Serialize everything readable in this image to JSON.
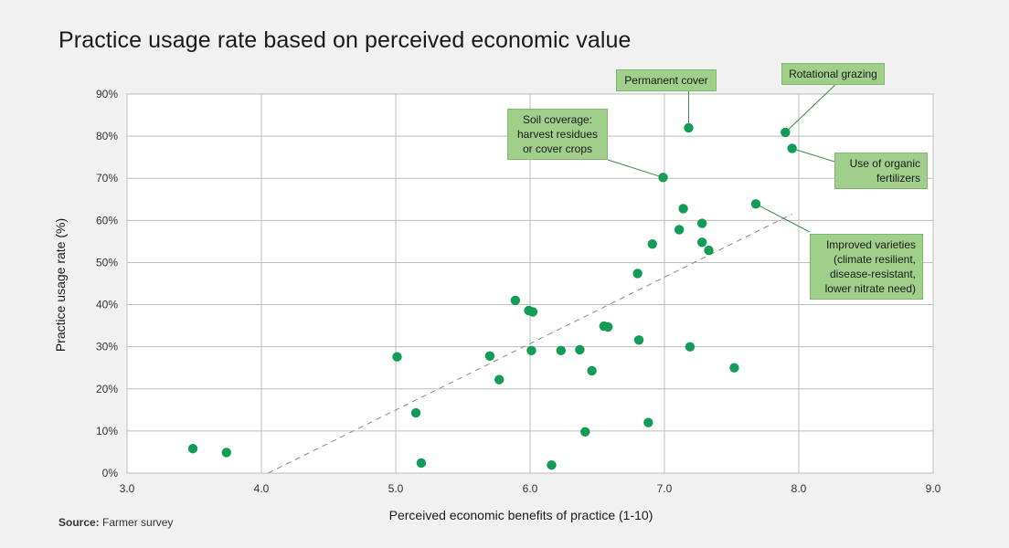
{
  "chart_data": {
    "type": "scatter",
    "title": "Practice usage rate based on perceived economic value",
    "xlabel_bold": "Perceived economic benefits of practice",
    "xlabel_rest": " (1-10)",
    "ylabel": "Practice usage rate (%)",
    "xlim": [
      3.0,
      9.0
    ],
    "ylim": [
      0,
      90
    ],
    "x_ticks": [
      "3.0",
      "4.0",
      "5.0",
      "6.0",
      "7.0",
      "8.0",
      "9.0"
    ],
    "y_ticks": [
      "0%",
      "10%",
      "20%",
      "30%",
      "40%",
      "50%",
      "60%",
      "70%",
      "80%",
      "90%"
    ],
    "grid": true,
    "point_color": "#129c55",
    "trendline": {
      "x": [
        4.05,
        7.95
      ],
      "y": [
        0,
        61.5
      ],
      "style": "dashed"
    },
    "points": [
      {
        "x": 3.49,
        "y": 5.8
      },
      {
        "x": 3.74,
        "y": 4.9
      },
      {
        "x": 5.01,
        "y": 27.6
      },
      {
        "x": 5.15,
        "y": 14.3
      },
      {
        "x": 5.19,
        "y": 2.4
      },
      {
        "x": 5.7,
        "y": 27.8
      },
      {
        "x": 5.77,
        "y": 22.2
      },
      {
        "x": 5.89,
        "y": 41.0
      },
      {
        "x": 5.99,
        "y": 38.6
      },
      {
        "x": 6.02,
        "y": 38.3
      },
      {
        "x": 6.01,
        "y": 29.1
      },
      {
        "x": 6.16,
        "y": 1.9
      },
      {
        "x": 6.23,
        "y": 29.1
      },
      {
        "x": 6.37,
        "y": 29.3
      },
      {
        "x": 6.41,
        "y": 9.8
      },
      {
        "x": 6.46,
        "y": 24.3
      },
      {
        "x": 6.55,
        "y": 34.9
      },
      {
        "x": 6.58,
        "y": 34.7
      },
      {
        "x": 6.8,
        "y": 47.4
      },
      {
        "x": 6.81,
        "y": 31.6
      },
      {
        "x": 6.88,
        "y": 12.0
      },
      {
        "x": 6.91,
        "y": 54.4
      },
      {
        "x": 6.99,
        "y": 70.2
      },
      {
        "x": 7.11,
        "y": 57.8
      },
      {
        "x": 7.14,
        "y": 62.8
      },
      {
        "x": 7.18,
        "y": 82.0
      },
      {
        "x": 7.19,
        "y": 30.0
      },
      {
        "x": 7.28,
        "y": 59.3
      },
      {
        "x": 7.28,
        "y": 54.8
      },
      {
        "x": 7.33,
        "y": 52.9
      },
      {
        "x": 7.52,
        "y": 25.0
      },
      {
        "x": 7.68,
        "y": 63.9
      },
      {
        "x": 7.9,
        "y": 80.9
      },
      {
        "x": 7.95,
        "y": 77.1
      }
    ],
    "annotations": [
      {
        "id": "permanent",
        "lines": [
          "Permanent cover"
        ],
        "target": {
          "x": 7.18,
          "y": 82.0
        }
      },
      {
        "id": "rotational",
        "lines": [
          "Rotational grazing"
        ],
        "target": {
          "x": 7.9,
          "y": 80.9
        }
      },
      {
        "id": "soil",
        "lines": [
          "Soil coverage:",
          "harvest residues",
          "or cover crops"
        ],
        "target": {
          "x": 6.99,
          "y": 70.2
        }
      },
      {
        "id": "organic",
        "lines": [
          "Use of organic",
          "fertilizers"
        ],
        "target": {
          "x": 7.95,
          "y": 77.1
        }
      },
      {
        "id": "improved",
        "lines": [
          "Improved varieties",
          "(climate resilient,",
          "disease-resistant,",
          "lower nitrate need)"
        ],
        "target": {
          "x": 7.68,
          "y": 63.9
        }
      }
    ]
  },
  "source": {
    "label": "Source:",
    "text": " Farmer survey"
  }
}
